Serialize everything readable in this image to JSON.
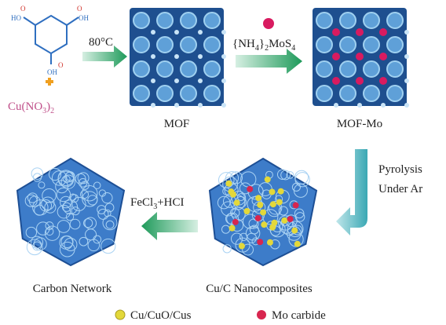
{
  "molecule": {
    "atoms": [
      "HO",
      "OH",
      "OH",
      "O",
      "O",
      "O"
    ]
  },
  "precursor": [
    "Cu(NO",
    "3",
    ")",
    "2"
  ],
  "steps": [
    {
      "label": [
        "80°C"
      ]
    },
    {
      "label": [
        "{NH",
        "4",
        "}",
        "2",
        "MoS",
        "4"
      ]
    },
    {
      "label": [
        "Pyrolysis",
        "Under Ar"
      ]
    },
    {
      "label": [
        "FeCl",
        "3",
        "+HCI"
      ]
    }
  ],
  "nodes": [
    {
      "label": "MOF"
    },
    {
      "label": "MOF-Mo"
    },
    {
      "label": "Cu/C Nanocomposites"
    },
    {
      "label": "Carbon Network"
    }
  ],
  "legend": [
    {
      "label": "Cu/CuO/Cus"
    },
    {
      "label": "Mo carbide"
    }
  ]
}
